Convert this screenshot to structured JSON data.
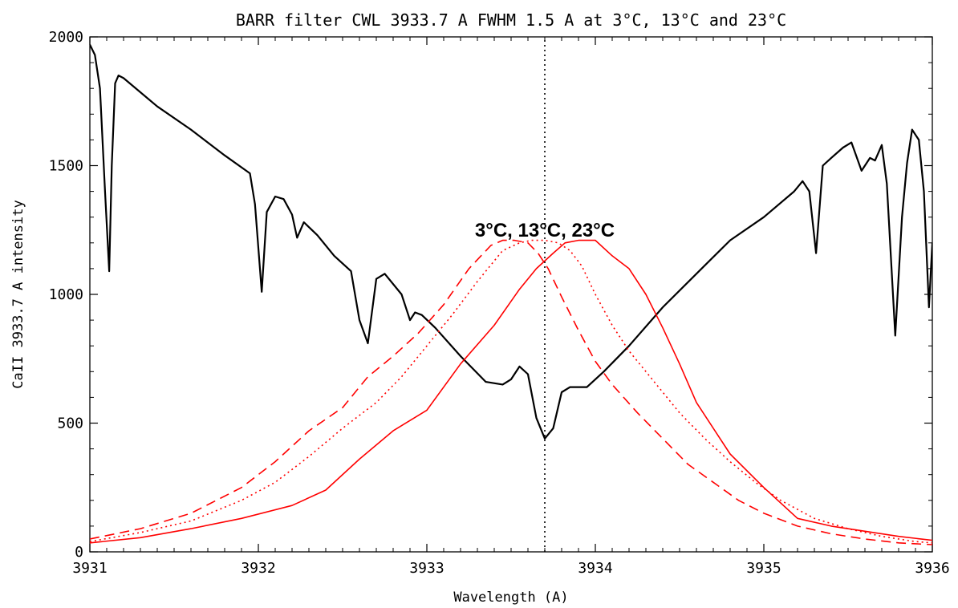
{
  "chart_data": {
    "type": "line",
    "title": "BARR filter CWL 3933.7 A FWHM 1.5 A at 3°C, 13°C and 23°C",
    "xlabel": "Wavelength (A)",
    "ylabel": "CaII 3933.7 A intensity",
    "xlim": [
      3931,
      3936
    ],
    "ylim": [
      0,
      2000
    ],
    "xticks": [
      3931,
      3932,
      3933,
      3934,
      3935,
      3936
    ],
    "yticks": [
      0,
      500,
      1000,
      1500,
      2000
    ],
    "grid": false,
    "annotation": "3°C, 13°C, 23°C",
    "annotation_xy": [
      3933.7,
      1250
    ],
    "vline_x": 3933.7,
    "series": [
      {
        "color": "#000000",
        "style": "solid",
        "x": [
          3931.0,
          3931.03,
          3931.06,
          3931.09,
          3931.115,
          3931.13,
          3931.15,
          3931.17,
          3931.2,
          3931.4,
          3931.6,
          3931.8,
          3931.95,
          3931.98,
          3932.02,
          3932.05,
          3932.1,
          3932.15,
          3932.2,
          3932.23,
          3932.27,
          3932.35,
          3932.45,
          3932.55,
          3932.6,
          3932.65,
          3932.7,
          3932.75,
          3932.85,
          3932.9,
          3932.93,
          3932.97,
          3933.05,
          3933.2,
          3933.35,
          3933.45,
          3933.5,
          3933.55,
          3933.6,
          3933.65,
          3933.7,
          3933.75,
          3933.8,
          3933.85,
          3933.95,
          3934.05,
          3934.2,
          3934.4,
          3934.6,
          3934.8,
          3935.0,
          3935.18,
          3935.23,
          3935.27,
          3935.31,
          3935.35,
          3935.4,
          3935.47,
          3935.52,
          3935.58,
          3935.63,
          3935.66,
          3935.7,
          3935.73,
          3935.78,
          3935.82,
          3935.85,
          3935.88,
          3935.92,
          3935.95,
          3935.98,
          3936.0
        ],
        "y": [
          1970,
          1930,
          1800,
          1400,
          1090,
          1500,
          1820,
          1850,
          1840,
          1730,
          1640,
          1540,
          1470,
          1350,
          1010,
          1320,
          1380,
          1370,
          1310,
          1220,
          1280,
          1230,
          1150,
          1090,
          900,
          810,
          1060,
          1080,
          1000,
          900,
          930,
          920,
          870,
          760,
          660,
          650,
          670,
          720,
          690,
          520,
          440,
          480,
          620,
          640,
          640,
          700,
          800,
          950,
          1080,
          1210,
          1300,
          1400,
          1440,
          1400,
          1160,
          1500,
          1530,
          1570,
          1590,
          1480,
          1530,
          1520,
          1580,
          1430,
          840,
          1300,
          1510,
          1640,
          1600,
          1400,
          950,
          1200
        ]
      },
      {
        "color": "#ff0000",
        "style": "dashed",
        "x": [
          3931.0,
          3931.3,
          3931.6,
          3931.9,
          3932.1,
          3932.3,
          3932.5,
          3932.65,
          3932.8,
          3932.95,
          3933.1,
          3933.25,
          3933.38,
          3933.45,
          3933.52,
          3933.6,
          3933.66,
          3933.72,
          3933.8,
          3933.9,
          3934.0,
          3934.1,
          3934.25,
          3934.4,
          3934.55,
          3934.7,
          3934.85,
          3935.0,
          3935.2,
          3935.4,
          3935.6,
          3935.8,
          3936.0
        ],
        "y": [
          50,
          90,
          150,
          250,
          350,
          470,
          560,
          680,
          760,
          850,
          960,
          1100,
          1190,
          1210,
          1210,
          1200,
          1160,
          1100,
          990,
          860,
          740,
          650,
          540,
          440,
          340,
          270,
          200,
          150,
          100,
          70,
          50,
          35,
          28
        ]
      },
      {
        "color": "#ff0000",
        "style": "dotted",
        "x": [
          3931.0,
          3931.3,
          3931.6,
          3931.9,
          3932.1,
          3932.3,
          3932.5,
          3932.7,
          3932.85,
          3933.0,
          3933.15,
          3933.3,
          3933.45,
          3933.55,
          3933.62,
          3933.7,
          3933.78,
          3933.85,
          3933.92,
          3934.0,
          3934.1,
          3934.2,
          3934.35,
          3934.5,
          3934.65,
          3934.8,
          3934.95,
          3935.1,
          3935.3,
          3935.5,
          3935.7,
          3935.9,
          3936.0
        ],
        "y": [
          40,
          75,
          120,
          200,
          270,
          370,
          480,
          580,
          680,
          800,
          920,
          1050,
          1170,
          1200,
          1210,
          1210,
          1200,
          1170,
          1110,
          1000,
          880,
          780,
          660,
          540,
          440,
          350,
          270,
          200,
          130,
          90,
          60,
          40,
          35
        ]
      },
      {
        "color": "#ff0000",
        "style": "solid",
        "x": [
          3931.0,
          3931.3,
          3931.6,
          3931.9,
          3932.2,
          3932.4,
          3932.6,
          3932.8,
          3933.0,
          3933.2,
          3933.4,
          3933.55,
          3933.65,
          3933.75,
          3933.82,
          3933.9,
          3934.0,
          3934.1,
          3934.2,
          3934.3,
          3934.4,
          3934.5,
          3934.6,
          3934.8,
          3935.0,
          3935.2,
          3935.4,
          3935.6,
          3935.8,
          3936.0
        ],
        "y": [
          35,
          55,
          90,
          130,
          180,
          240,
          360,
          470,
          550,
          730,
          880,
          1020,
          1100,
          1160,
          1200,
          1210,
          1210,
          1150,
          1100,
          1000,
          870,
          730,
          580,
          380,
          250,
          130,
          100,
          80,
          60,
          45
        ]
      },
      {
        "color": "#000000",
        "style": "dotted",
        "x": [
          3933.7,
          3933.7
        ],
        "y": [
          0,
          2000
        ]
      }
    ]
  }
}
